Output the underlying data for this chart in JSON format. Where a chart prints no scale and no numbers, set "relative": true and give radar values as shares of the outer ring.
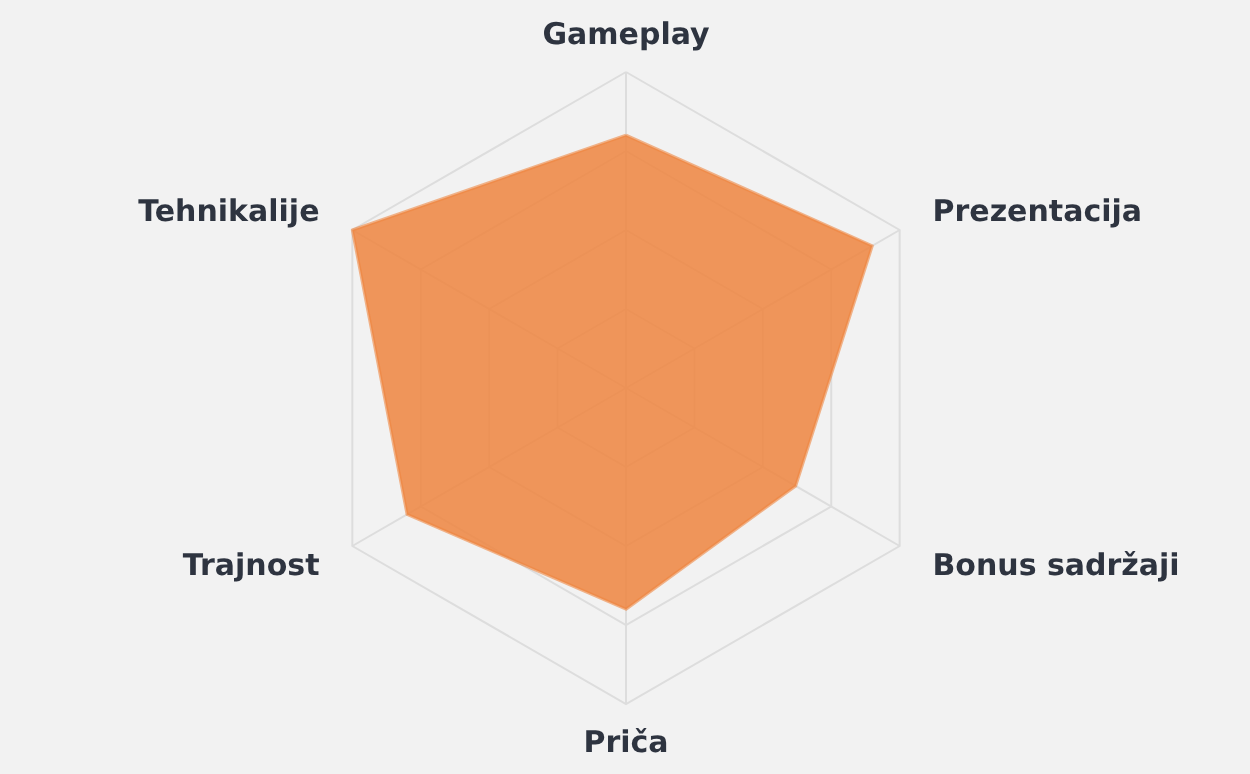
{
  "chart_data": {
    "type": "radar",
    "relative": true,
    "grid": true,
    "categories": [
      "Gameplay",
      "Prezentacija",
      "Bonus sadržaji",
      "Priča",
      "Trajnost",
      "Tehnikalije"
    ],
    "series": [
      {
        "color": "#ee8540",
        "values": [
          0.8,
          0.9,
          0.62,
          0.7,
          0.8,
          1.0
        ]
      }
    ]
  }
}
